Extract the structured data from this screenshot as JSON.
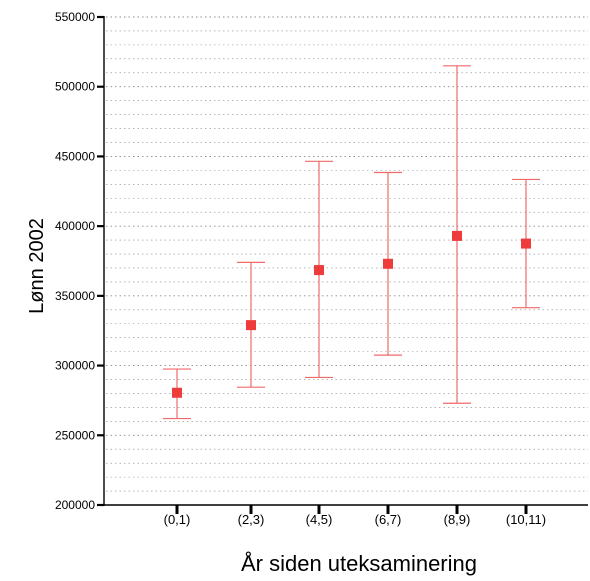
{
  "chart_data": {
    "type": "errorbar",
    "xlabel": "År siden uteksaminering",
    "ylabel": "Lønn 2002",
    "ylim": [
      200000,
      550000
    ],
    "yticks": [
      "200000",
      "250000",
      "300000",
      "350000",
      "400000",
      "450000",
      "500000",
      "550000"
    ],
    "categories": [
      "(0,1)",
      "(2,3)",
      "(4,5)",
      "(6,7)",
      "(8,9)",
      "(10,11)"
    ],
    "series": [
      {
        "mean": [
          280500,
          329000,
          368500,
          373000,
          393000,
          387500
        ],
        "lower": [
          262000,
          284500,
          291500,
          307500,
          273000,
          341500
        ],
        "upper": [
          297500,
          374000,
          446500,
          438500,
          515000,
          433500
        ]
      }
    ],
    "grid": "horizontal dotted",
    "colors": {
      "marker": "#ee3b3b",
      "errorbar": "#f06a6a",
      "axis": "#000000",
      "grid": "#8a8a8a"
    }
  }
}
